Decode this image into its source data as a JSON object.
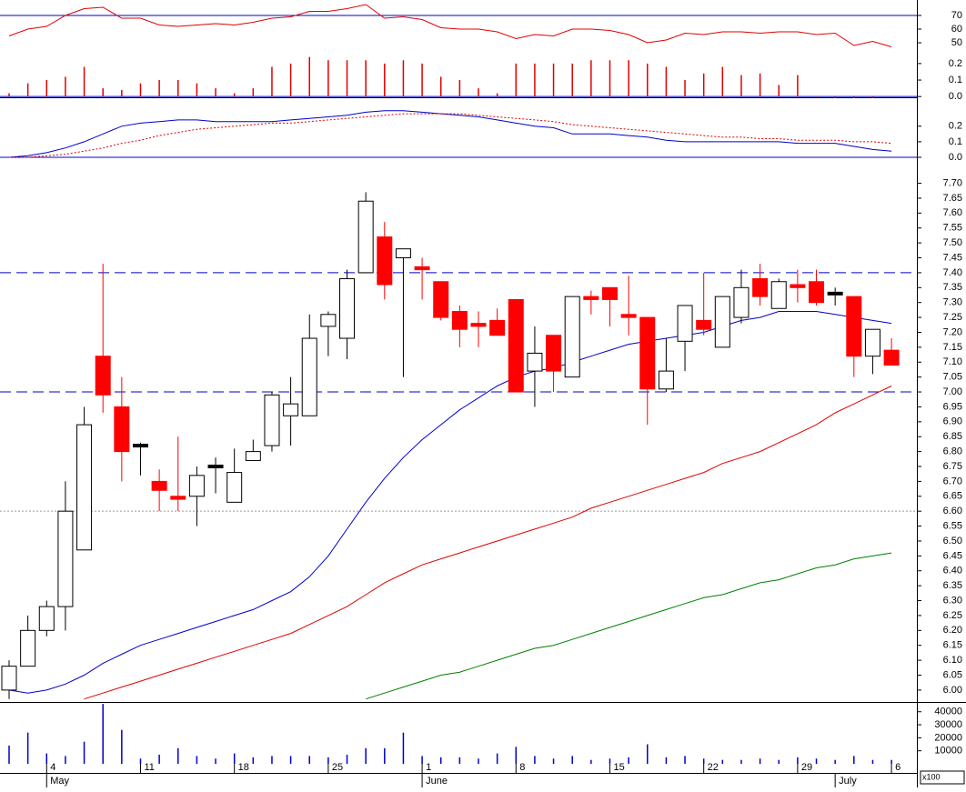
{
  "chart_data": [
    {
      "type": "line",
      "ylim": [
        42.7,
        81.3
      ],
      "yticks": [
        50,
        60,
        70
      ],
      "hlines": [
        {
          "value": 70,
          "color": "#0000cc",
          "style": "solid"
        }
      ],
      "series": [
        {
          "color": "#e00000",
          "style": "solid",
          "values": [
            55,
            60,
            62,
            70,
            75,
            76,
            68,
            68,
            63,
            62,
            63,
            64,
            63,
            65,
            68,
            69,
            73,
            73,
            75,
            78,
            68,
            69,
            67,
            61,
            60,
            60,
            58,
            53,
            56,
            55,
            60,
            60,
            59,
            56,
            50,
            52,
            57,
            56,
            58,
            58,
            57,
            58,
            58,
            56,
            57,
            48,
            51,
            47
          ]
        }
      ]
    },
    {
      "type": "bar",
      "ylim": [
        -0.01,
        0.26
      ],
      "yticks": [
        {
          "value": 0,
          "label": "0.0"
        },
        0.1,
        0.2
      ],
      "hlines": [
        {
          "value": 0,
          "color": "#0000cc",
          "style": "solid"
        }
      ],
      "color": "#e00000",
      "values": [
        0.02,
        0.08,
        0.1,
        0.12,
        0.18,
        0.05,
        0.04,
        0.08,
        0.1,
        0.1,
        0.08,
        0.05,
        0.02,
        0.05,
        0.18,
        0.2,
        0.24,
        0.22,
        0.22,
        0.22,
        0.2,
        0.22,
        0.2,
        0.12,
        0.1,
        0.05,
        0.02,
        0.2,
        0.2,
        0.2,
        0.2,
        0.22,
        0.22,
        0.22,
        0.2,
        0.18,
        0.1,
        0.14,
        0.18,
        0.13,
        0.14,
        0.07,
        0.13,
        0,
        -0.01,
        -0.01,
        -0.01,
        0
      ]
    },
    {
      "type": "line",
      "ylim": [
        0,
        0.38
      ],
      "yticks": [
        {
          "value": 0,
          "label": "0.0"
        },
        0.1,
        0.2
      ],
      "hlines": [
        {
          "value": 0,
          "color": "#0000cc",
          "style": "solid"
        }
      ],
      "series": [
        {
          "color": "#0000cc",
          "style": "solid",
          "values": [
            0,
            0.01,
            0.03,
            0.06,
            0.1,
            0.15,
            0.2,
            0.22,
            0.23,
            0.24,
            0.24,
            0.23,
            0.23,
            0.23,
            0.23,
            0.24,
            0.25,
            0.26,
            0.27,
            0.29,
            0.3,
            0.3,
            0.29,
            0.28,
            0.27,
            0.26,
            0.24,
            0.22,
            0.2,
            0.19,
            0.15,
            0.15,
            0.15,
            0.14,
            0.13,
            0.11,
            0.1,
            0.1,
            0.1,
            0.1,
            0.1,
            0.1,
            0.09,
            0.09,
            0.09,
            0.07,
            0.05,
            0.04
          ]
        },
        {
          "color": "#e00000",
          "style": "dotted",
          "values": [
            0,
            0,
            0.01,
            0.02,
            0.04,
            0.06,
            0.09,
            0.11,
            0.14,
            0.16,
            0.18,
            0.19,
            0.2,
            0.21,
            0.22,
            0.22,
            0.23,
            0.24,
            0.25,
            0.26,
            0.27,
            0.28,
            0.28,
            0.28,
            0.28,
            0.27,
            0.26,
            0.25,
            0.24,
            0.23,
            0.21,
            0.2,
            0.19,
            0.18,
            0.17,
            0.16,
            0.15,
            0.14,
            0.13,
            0.13,
            0.12,
            0.12,
            0.11,
            0.11,
            0.11,
            0.1,
            0.1,
            0.09
          ]
        }
      ]
    },
    {
      "type": "candlestick",
      "ylim": [
        5.96,
        7.72
      ],
      "yticks": [
        {
          "value": 6,
          "label": "6.00"
        },
        6.05,
        {
          "value": 6.1,
          "label": "6.10"
        },
        6.15,
        {
          "value": 6.2,
          "label": "6.20"
        },
        6.25,
        {
          "value": 6.3,
          "label": "6.30"
        },
        6.35,
        {
          "value": 6.4,
          "label": "6.40"
        },
        6.45,
        {
          "value": 6.5,
          "label": "6.50"
        },
        6.55,
        {
          "value": 6.6,
          "label": "6.60"
        },
        6.65,
        {
          "value": 6.7,
          "label": "6.70"
        },
        6.75,
        {
          "value": 6.8,
          "label": "6.80"
        },
        6.85,
        {
          "value": 6.9,
          "label": "6.90"
        },
        6.95,
        {
          "value": 7,
          "label": "7.00"
        },
        7.05,
        {
          "value": 7.1,
          "label": "7.10"
        },
        7.15,
        {
          "value": 7.2,
          "label": "7.20"
        },
        7.25,
        {
          "value": 7.3,
          "label": "7.30"
        },
        7.35,
        {
          "value": 7.4,
          "label": "7.40"
        },
        7.45,
        {
          "value": 7.5,
          "label": "7.50"
        },
        7.55,
        {
          "value": 7.6,
          "label": "7.60"
        },
        7.65,
        {
          "value": 7.7,
          "label": "7.70"
        }
      ],
      "categories": [
        null,
        null,
        "4",
        null,
        null,
        null,
        null,
        "11",
        null,
        null,
        null,
        null,
        "18",
        null,
        null,
        null,
        null,
        "25",
        null,
        null,
        null,
        null,
        "1",
        null,
        null,
        null,
        null,
        "8",
        null,
        null,
        null,
        null,
        "15",
        null,
        null,
        null,
        null,
        "22",
        null,
        null,
        null,
        null,
        "29",
        null,
        null,
        null,
        null,
        "6"
      ],
      "months": [
        null,
        null,
        "May",
        null,
        null,
        null,
        null,
        null,
        null,
        null,
        null,
        null,
        null,
        null,
        null,
        null,
        null,
        null,
        null,
        null,
        null,
        null,
        "June",
        null,
        null,
        null,
        null,
        null,
        null,
        null,
        null,
        null,
        null,
        null,
        null,
        null,
        null,
        null,
        null,
        null,
        null,
        null,
        null,
        null,
        "July",
        null,
        null,
        null
      ],
      "up_color": "#ffffff",
      "down_color": "#ff0000",
      "flat_color": "#000000",
      "outline_color": "#000000",
      "open": [
        6,
        6.08,
        6.2,
        6.28,
        6.47,
        7.12,
        6.95,
        6.82,
        6.7,
        6.65,
        6.65,
        6.75,
        6.63,
        6.77,
        6.82,
        6.92,
        6.92,
        7.22,
        7.18,
        7.4,
        7.52,
        7.45,
        7.42,
        7.37,
        7.27,
        7.23,
        7.24,
        7.31,
        7.07,
        7.19,
        7.05,
        7.32,
        7.35,
        7.26,
        7.25,
        7.01,
        7.17,
        7.24,
        7.15,
        7.25,
        7.38,
        7.28,
        7.36,
        7.37,
        7.33,
        7.32,
        7.12,
        7.14
      ],
      "high": [
        6.1,
        6.25,
        6.3,
        6.7,
        6.95,
        7.43,
        7.05,
        6.83,
        6.74,
        6.85,
        6.75,
        6.78,
        6.81,
        6.84,
        7,
        7.05,
        7.26,
        7.27,
        7.41,
        7.67,
        7.57,
        7.48,
        7.45,
        7.37,
        7.29,
        7.27,
        7.28,
        7.31,
        7.22,
        7.19,
        7.32,
        7.34,
        7.35,
        7.39,
        7.25,
        7.18,
        7.29,
        7.4,
        7.32,
        7.41,
        7.43,
        7.38,
        7.41,
        7.41,
        7.35,
        7.32,
        7.21,
        7.18
      ],
      "low": [
        5.97,
        6.08,
        6.18,
        6.2,
        6.47,
        6.93,
        6.7,
        6.72,
        6.6,
        6.6,
        6.55,
        6.66,
        6.63,
        6.77,
        6.8,
        6.82,
        6.92,
        7.12,
        7.11,
        7.4,
        7.31,
        7.05,
        7.31,
        7.24,
        7.15,
        7.15,
        7.19,
        7,
        6.95,
        7,
        7.05,
        7.26,
        7.22,
        7.19,
        6.89,
        7,
        7.07,
        7.19,
        7.15,
        7.23,
        7.29,
        7.28,
        7.3,
        7.29,
        7.29,
        7.05,
        7.06,
        7.09
      ],
      "close": [
        6.08,
        6.2,
        6.28,
        6.6,
        6.89,
        6.99,
        6.8,
        6.82,
        6.67,
        6.64,
        6.72,
        6.75,
        6.73,
        6.8,
        6.99,
        6.96,
        7.18,
        7.26,
        7.38,
        7.64,
        7.36,
        7.48,
        7.41,
        7.25,
        7.21,
        7.22,
        7.19,
        7,
        7.13,
        7.07,
        7.32,
        7.31,
        7.31,
        7.25,
        7.01,
        7.07,
        7.29,
        7.21,
        7.32,
        7.35,
        7.32,
        7.37,
        7.35,
        7.3,
        7.33,
        7.12,
        7.21,
        7.09
      ],
      "hlines": [
        {
          "value": 7.4,
          "color": "#0000cc",
          "style": "dashed"
        },
        {
          "value": 7,
          "color": "#0000cc",
          "style": "dashed"
        },
        {
          "value": 6.6,
          "color": "#999999",
          "style": "dotted"
        }
      ],
      "overlays": [
        {
          "color": "#0000cc",
          "values": [
            6,
            5.99,
            6,
            6.02,
            6.05,
            6.09,
            6.12,
            6.15,
            6.17,
            6.19,
            6.21,
            6.23,
            6.25,
            6.27,
            6.3,
            6.33,
            6.38,
            6.45,
            6.54,
            6.63,
            6.71,
            6.78,
            6.84,
            6.89,
            6.94,
            6.98,
            7.02,
            7.05,
            7.07,
            7.08,
            7.1,
            7.12,
            7.14,
            7.16,
            7.17,
            7.18,
            7.19,
            7.2,
            7.22,
            7.24,
            7.25,
            7.27,
            7.27,
            7.27,
            7.26,
            7.25,
            7.24,
            7.23
          ]
        },
        {
          "color": "#e00000",
          "values": [
            null,
            null,
            null,
            null,
            5.97,
            5.99,
            6.01,
            6.03,
            6.05,
            6.07,
            6.09,
            6.11,
            6.13,
            6.15,
            6.17,
            6.19,
            6.22,
            6.25,
            6.28,
            6.32,
            6.36,
            6.39,
            6.42,
            6.44,
            6.46,
            6.48,
            6.5,
            6.52,
            6.54,
            6.56,
            6.58,
            6.61,
            6.63,
            6.65,
            6.67,
            6.69,
            6.71,
            6.73,
            6.76,
            6.78,
            6.8,
            6.83,
            6.86,
            6.89,
            6.93,
            6.96,
            6.99,
            7.02
          ]
        },
        {
          "color": "#008000",
          "values": [
            null,
            null,
            null,
            null,
            null,
            null,
            null,
            null,
            null,
            null,
            null,
            null,
            null,
            null,
            null,
            null,
            null,
            null,
            null,
            5.97,
            5.99,
            6.01,
            6.03,
            6.05,
            6.06,
            6.08,
            6.1,
            6.12,
            6.14,
            6.15,
            6.17,
            6.19,
            6.21,
            6.23,
            6.25,
            6.27,
            6.29,
            6.31,
            6.32,
            6.34,
            6.36,
            6.37,
            6.39,
            6.41,
            6.42,
            6.44,
            6.45,
            6.46
          ]
        }
      ]
    },
    {
      "type": "bar",
      "ylim": [
        0,
        47500
      ],
      "yticks": [
        10000,
        20000,
        30000,
        40000
      ],
      "unit_label": "x100",
      "color": "#0000cc",
      "values": [
        14000,
        24000,
        8000,
        6000,
        17000,
        46000,
        26000,
        4000,
        7000,
        12000,
        6000,
        4000,
        8000,
        5000,
        6000,
        6000,
        6000,
        5000,
        7000,
        12000,
        12000,
        24000,
        6000,
        5000,
        5000,
        4000,
        8000,
        13000,
        6000,
        4000,
        6000,
        3000,
        4000,
        5000,
        15000,
        5000,
        6000,
        4000,
        3000,
        3000,
        4000,
        3000,
        5000,
        4000,
        3000,
        6000,
        3000,
        3000
      ]
    }
  ]
}
